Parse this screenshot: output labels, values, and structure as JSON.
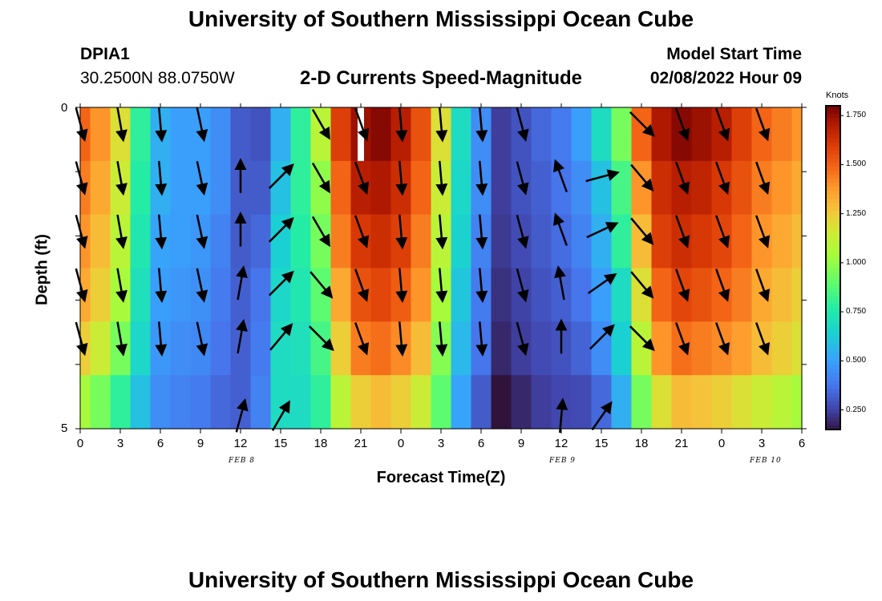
{
  "header": {
    "title": "University of Southern Mississippi Ocean Cube",
    "station": "DPIA1",
    "coords": "30.2500N  88.0750W",
    "chart_title": "2-D Currents Speed-Magnitude",
    "model_start_label": "Model Start Time",
    "model_start_value": "02/08/2022 Hour 09"
  },
  "footer": {
    "title": "University of Southern Mississippi Ocean Cube"
  },
  "colorbar": {
    "unit": "Knots",
    "labels": [
      "1.750",
      "1.500",
      "1.250",
      "1.000",
      "0.750",
      "0.500",
      "0.250"
    ],
    "min": 0.15,
    "max": 1.8
  },
  "chart_data": {
    "type": "heatmap",
    "xlabel": "Forecast Time(Z)",
    "ylabel": "Depth (ft)",
    "ylim": [
      0,
      5
    ],
    "y_ticks": [
      "0",
      "5"
    ],
    "x_tick_labels": [
      "0",
      "3",
      "6",
      "9",
      "12",
      "15",
      "18",
      "21",
      "0",
      "3",
      "6",
      "9",
      "12",
      "15",
      "18",
      "21",
      "0",
      "3",
      "6"
    ],
    "date_labels": [
      {
        "text": "FEB 8",
        "tick": 4
      },
      {
        "text": "FEB 9",
        "tick": 12
      },
      {
        "text": "FEB 10",
        "tick": 17
      }
    ],
    "hours": [
      0,
      1.5,
      3,
      4.5,
      6,
      7.5,
      9,
      10.5,
      12,
      13.5,
      15,
      16.5,
      18,
      19.5,
      21,
      22.5,
      24,
      25.5,
      27,
      28.5,
      30,
      31.5,
      33,
      34.5,
      36,
      37.5,
      39,
      40.5,
      42,
      43.5,
      45,
      46.5,
      48,
      49.5,
      51,
      52.5,
      54
    ],
    "depth_layers": [
      0,
      1,
      2,
      3,
      4,
      5
    ],
    "speed_knots": [
      [
        1.5,
        1.4,
        1.2,
        0.8,
        0.55,
        0.5,
        0.5,
        0.45,
        0.32,
        0.3,
        0.55,
        0.8,
        1.1,
        1.6,
        1.75,
        1.78,
        1.7,
        1.55,
        1.2,
        0.7,
        0.45,
        0.25,
        0.3,
        0.35,
        0.4,
        0.5,
        0.7,
        0.95,
        1.5,
        1.72,
        1.78,
        1.75,
        1.7,
        1.6,
        1.5,
        1.45,
        1.4
      ],
      [
        1.45,
        1.35,
        1.15,
        0.78,
        0.55,
        0.5,
        0.5,
        0.45,
        0.32,
        0.32,
        0.6,
        0.8,
        1.0,
        1.5,
        1.7,
        1.72,
        1.65,
        1.5,
        1.15,
        0.68,
        0.45,
        0.25,
        0.3,
        0.33,
        0.38,
        0.45,
        0.6,
        0.85,
        1.4,
        1.65,
        1.7,
        1.68,
        1.62,
        1.55,
        1.45,
        1.4,
        1.35
      ],
      [
        1.4,
        1.3,
        1.1,
        0.75,
        0.52,
        0.5,
        0.48,
        0.42,
        0.32,
        0.35,
        0.65,
        0.78,
        0.95,
        1.45,
        1.62,
        1.65,
        1.6,
        1.45,
        1.1,
        0.66,
        0.42,
        0.24,
        0.28,
        0.32,
        0.36,
        0.42,
        0.55,
        0.8,
        1.3,
        1.6,
        1.65,
        1.62,
        1.58,
        1.5,
        1.4,
        1.35,
        1.3
      ],
      [
        1.35,
        1.25,
        1.05,
        0.72,
        0.5,
        0.48,
        0.46,
        0.4,
        0.33,
        0.38,
        0.68,
        0.75,
        0.9,
        1.35,
        1.55,
        1.58,
        1.52,
        1.4,
        1.05,
        0.62,
        0.4,
        0.22,
        0.26,
        0.3,
        0.33,
        0.38,
        0.5,
        0.7,
        1.2,
        1.5,
        1.58,
        1.55,
        1.5,
        1.45,
        1.35,
        1.3,
        1.25
      ],
      [
        1.25,
        1.15,
        0.95,
        0.68,
        0.48,
        0.45,
        0.44,
        0.38,
        0.33,
        0.4,
        0.7,
        0.72,
        0.85,
        1.25,
        1.45,
        1.48,
        1.42,
        1.3,
        0.98,
        0.58,
        0.38,
        0.2,
        0.25,
        0.28,
        0.3,
        0.34,
        0.45,
        0.65,
        1.1,
        1.4,
        1.48,
        1.45,
        1.42,
        1.38,
        1.3,
        1.25,
        1.2
      ],
      [
        1.05,
        0.95,
        0.8,
        0.6,
        0.45,
        0.42,
        0.4,
        0.35,
        0.33,
        0.42,
        0.7,
        0.7,
        0.8,
        1.1,
        1.25,
        1.3,
        1.25,
        1.15,
        0.9,
        0.52,
        0.32,
        0.15,
        0.2,
        0.25,
        0.27,
        0.28,
        0.35,
        0.55,
        0.95,
        1.2,
        1.3,
        1.28,
        1.25,
        1.2,
        1.15,
        1.1,
        1.05
      ]
    ],
    "vectors": {
      "hours": [
        0,
        3,
        6,
        9,
        12,
        15,
        18,
        21,
        24,
        27,
        30,
        33,
        36,
        39,
        42,
        45,
        48,
        51
      ],
      "depths": [
        0,
        1,
        2,
        3,
        4,
        5
      ],
      "direction_deg": [
        [
          165,
          170,
          175,
          168,
          null,
          null,
          150,
          160,
          175,
          175,
          175,
          165,
          null,
          null,
          135,
          160,
          160,
          160
        ],
        [
          165,
          170,
          175,
          168,
          0,
          45,
          150,
          160,
          175,
          175,
          175,
          165,
          -20,
          75,
          140,
          160,
          160,
          160
        ],
        [
          165,
          170,
          175,
          168,
          0,
          45,
          150,
          160,
          175,
          175,
          175,
          165,
          -20,
          65,
          140,
          160,
          160,
          160
        ],
        [
          165,
          170,
          175,
          168,
          10,
          45,
          140,
          160,
          175,
          175,
          175,
          165,
          -10,
          55,
          140,
          160,
          160,
          160
        ],
        [
          165,
          170,
          175,
          168,
          10,
          40,
          135,
          160,
          175,
          175,
          175,
          165,
          0,
          45,
          135,
          160,
          160,
          160
        ],
        [
          null,
          null,
          null,
          null,
          15,
          30,
          null,
          null,
          null,
          null,
          null,
          null,
          5,
          35,
          null,
          null,
          null,
          null
        ]
      ]
    },
    "missing_cell": {
      "hour": 21,
      "depth": 0
    }
  }
}
